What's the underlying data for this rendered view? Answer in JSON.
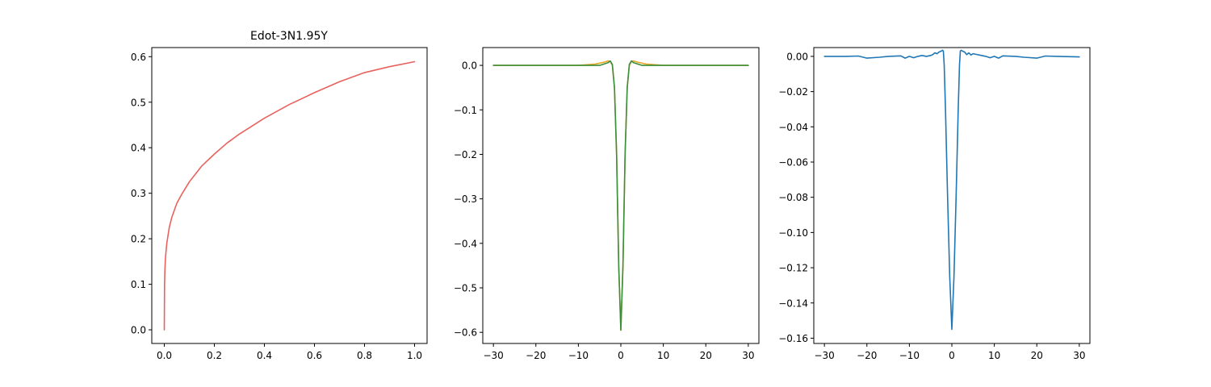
{
  "colors": {
    "red": "#e8625e",
    "orange": "#e8a82b",
    "green": "#3a8f3a",
    "blue": "#1f77b4"
  },
  "chart_data": [
    {
      "type": "line",
      "title": "Edot-3N1.95Y",
      "xlabel": "",
      "ylabel": "",
      "xlim": [
        -0.05,
        1.05
      ],
      "ylim": [
        -0.03,
        0.62
      ],
      "xticks": [
        0.0,
        0.2,
        0.4,
        0.6,
        0.8,
        1.0
      ],
      "xtick_labels": [
        "0.0",
        "0.2",
        "0.4",
        "0.6",
        "0.8",
        "1.0"
      ],
      "yticks": [
        0.0,
        0.1,
        0.2,
        0.3,
        0.4,
        0.5,
        0.6
      ],
      "ytick_labels": [
        "0.0",
        "0.1",
        "0.2",
        "0.3",
        "0.4",
        "0.5",
        "0.6"
      ],
      "grid": false,
      "series": [
        {
          "color": "#e8625e",
          "x": [
            0,
            0.001,
            0.003,
            0.005,
            0.01,
            0.02,
            0.03,
            0.05,
            0.07,
            0.1,
            0.15,
            0.2,
            0.25,
            0.3,
            0.4,
            0.5,
            0.6,
            0.7,
            0.8,
            0.9,
            1.0
          ],
          "y": [
            0,
            0.1,
            0.14,
            0.16,
            0.19,
            0.225,
            0.247,
            0.278,
            0.298,
            0.325,
            0.36,
            0.386,
            0.41,
            0.43,
            0.465,
            0.495,
            0.521,
            0.545,
            0.565,
            0.578,
            0.589
          ]
        }
      ]
    },
    {
      "type": "line",
      "title": "",
      "xlabel": "",
      "ylabel": "",
      "xlim": [
        -32.5,
        32.5
      ],
      "ylim": [
        -0.625,
        0.04
      ],
      "xticks": [
        -30,
        -20,
        -10,
        0,
        10,
        20,
        30
      ],
      "xtick_labels": [
        "−30",
        "−20",
        "−10",
        "0",
        "10",
        "20",
        "30"
      ],
      "yticks": [
        0.0,
        -0.1,
        -0.2,
        -0.3,
        -0.4,
        -0.5,
        -0.6
      ],
      "ytick_labels": [
        "0.0",
        "−0.1",
        "−0.2",
        "−0.3",
        "−0.4",
        "−0.5",
        "−0.6"
      ],
      "grid": false,
      "series": [
        {
          "color": "#e8a82b",
          "x": [
            -30,
            -20,
            -10,
            -6,
            -4,
            -3,
            -2.5,
            -2,
            -1.5,
            -1,
            -0.5,
            0,
            0.5,
            1,
            1.5,
            2,
            2.5,
            3,
            4,
            6,
            10,
            20,
            30
          ],
          "y": [
            0,
            0,
            0,
            0.003,
            0.007,
            0.01,
            0.009,
            0.0,
            -0.05,
            -0.2,
            -0.45,
            -0.595,
            -0.45,
            -0.2,
            -0.05,
            0.0,
            0.009,
            0.01,
            0.007,
            0.003,
            0,
            0,
            0
          ]
        },
        {
          "color": "#3a8f3a",
          "x": [
            -30,
            -20,
            -10,
            -5,
            -3,
            -2.5,
            -2,
            -1.5,
            -1,
            -0.5,
            0,
            0.5,
            1,
            1.5,
            2,
            2.5,
            3,
            5,
            10,
            20,
            30
          ],
          "y": [
            0,
            0,
            0,
            0.0,
            0.006,
            0.01,
            0.002,
            -0.05,
            -0.2,
            -0.45,
            -0.595,
            -0.45,
            -0.2,
            -0.05,
            0.002,
            0.01,
            0.006,
            0.0,
            0,
            0,
            0
          ]
        }
      ]
    },
    {
      "type": "line",
      "title": "",
      "xlabel": "",
      "ylabel": "",
      "xlim": [
        -32.5,
        32.5
      ],
      "ylim": [
        -0.163,
        0.005
      ],
      "xticks": [
        -30,
        -20,
        -10,
        0,
        10,
        20,
        30
      ],
      "xtick_labels": [
        "−30",
        "−20",
        "−10",
        "0",
        "10",
        "20",
        "30"
      ],
      "yticks": [
        0.0,
        -0.02,
        -0.04,
        -0.06,
        -0.08,
        -0.1,
        -0.12,
        -0.14,
        -0.16
      ],
      "ytick_labels": [
        "0.00",
        "−0.02",
        "−0.04",
        "−0.06",
        "−0.08",
        "−0.10",
        "−0.12",
        "−0.14",
        "−0.16"
      ],
      "grid": false,
      "series": [
        {
          "color": "#1f77b4",
          "x": [
            -30,
            -25,
            -22,
            -20,
            -17,
            -15,
            -12,
            -11,
            -10,
            -9,
            -8,
            -7,
            -6,
            -5,
            -4.5,
            -4,
            -3.5,
            -3,
            -2.5,
            -2.2,
            -2,
            -1.8,
            -1.5,
            -1,
            -0.5,
            0,
            0.5,
            1,
            1.5,
            1.8,
            2,
            2.2,
            2.5,
            3,
            3.5,
            4,
            4.5,
            5,
            6,
            7,
            8,
            9,
            10,
            11,
            12,
            15,
            17,
            20,
            22,
            25,
            30
          ],
          "y": [
            0,
            0,
            0.0002,
            -0.001,
            -0.0005,
            0.0,
            0.0003,
            -0.001,
            0.0,
            -0.0008,
            0.0,
            0.0005,
            0.0,
            0.0005,
            0.001,
            0.002,
            0.0015,
            0.0025,
            0.003,
            0.0035,
            0.003,
            -0.005,
            -0.03,
            -0.08,
            -0.125,
            -0.155,
            -0.125,
            -0.08,
            -0.03,
            -0.005,
            0.003,
            0.0035,
            0.003,
            0.0025,
            0.001,
            0.002,
            0.0008,
            0.0015,
            0.001,
            0.0005,
            0.0,
            -0.0008,
            0.0,
            -0.001,
            0.0003,
            0.0,
            -0.0005,
            -0.001,
            0.0002,
            0.0,
            -0.0003
          ]
        }
      ]
    }
  ]
}
